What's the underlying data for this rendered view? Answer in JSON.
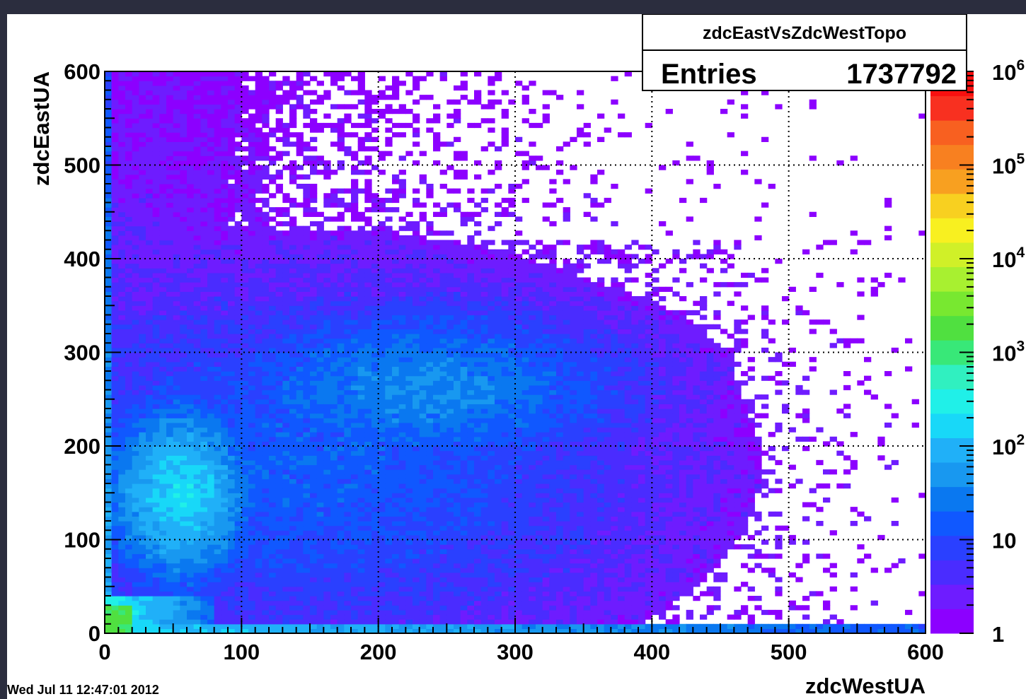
{
  "timestamp": "Wed Jul 11 12:47:01 2012",
  "stats_box": {
    "name": "zdcEastVsZdcWestTopo",
    "entries_label": "Entries",
    "entries_value": "1737792"
  },
  "palette": [
    "#8c00ff",
    "#6e1cff",
    "#4a2cff",
    "#2a40ff",
    "#1058ff",
    "#0a78f0",
    "#1898f0",
    "#20b0f8",
    "#18d8f8",
    "#20f0e8",
    "#30f0c0",
    "#38e878",
    "#50e040",
    "#78e830",
    "#a8f030",
    "#d0f028",
    "#f8f020",
    "#f8d020",
    "#f8a020",
    "#f88020",
    "#f86020",
    "#f83020",
    "#f81010"
  ],
  "chart_data": {
    "type": "heatmap",
    "title": "zdcEastVsZdcWestTopo",
    "xlabel": "zdcWestUA",
    "ylabel": "zdcEastUA",
    "xlim": [
      0,
      600
    ],
    "ylim": [
      0,
      600
    ],
    "x_ticks": [
      "0",
      "100",
      "200",
      "300",
      "400",
      "500",
      "600"
    ],
    "y_ticks": [
      "0",
      "100",
      "200",
      "300",
      "400",
      "500",
      "600"
    ],
    "color_scale": "log",
    "zlim": [
      1,
      1000000
    ],
    "z_tick_labels": [
      {
        "base": "10",
        "exp": "6",
        "value": 1000000
      },
      {
        "base": "10",
        "exp": "5",
        "value": 100000
      },
      {
        "base": "10",
        "exp": "4",
        "value": 10000
      },
      {
        "base": "10",
        "exp": "3",
        "value": 1000
      },
      {
        "base": "10",
        "exp": "2",
        "value": 100
      },
      {
        "base": "10",
        "exp": "",
        "value": 10
      },
      {
        "base": "1",
        "exp": "",
        "value": 1
      }
    ],
    "grid": true,
    "bins": [
      120,
      120
    ],
    "entries": 1737792
  }
}
